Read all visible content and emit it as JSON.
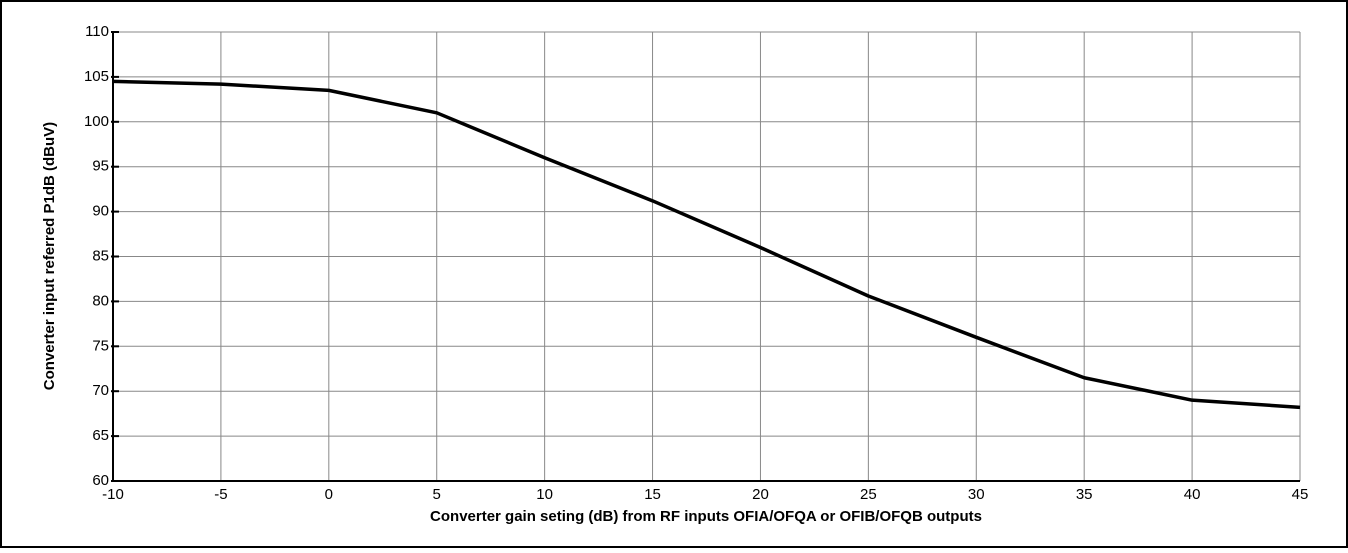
{
  "chart_data": {
    "type": "line",
    "x_label": "Converter gain seting (dB) from RF inputs OFIA/OFQA or OFIB/OFQB outputs",
    "y_label": "Converter input referred P1dB (dBuV)",
    "x": [
      -10,
      -5,
      0,
      5,
      10,
      15,
      20,
      25,
      30,
      35,
      40,
      45
    ],
    "series": [
      {
        "color": "#000000",
        "values": [
          104.5,
          104.2,
          103.5,
          101,
          96,
          91.2,
          86,
          80.6,
          76,
          71.5,
          69,
          68.2
        ]
      }
    ],
    "xlim": [
      -10,
      45
    ],
    "xticks": [
      -10,
      -5,
      0,
      5,
      10,
      15,
      20,
      25,
      30,
      35,
      40,
      45
    ],
    "ylim": [
      60,
      110
    ],
    "yticks": [
      60,
      65,
      70,
      75,
      80,
      85,
      90,
      95,
      100,
      105,
      110
    ],
    "grid": true
  }
}
